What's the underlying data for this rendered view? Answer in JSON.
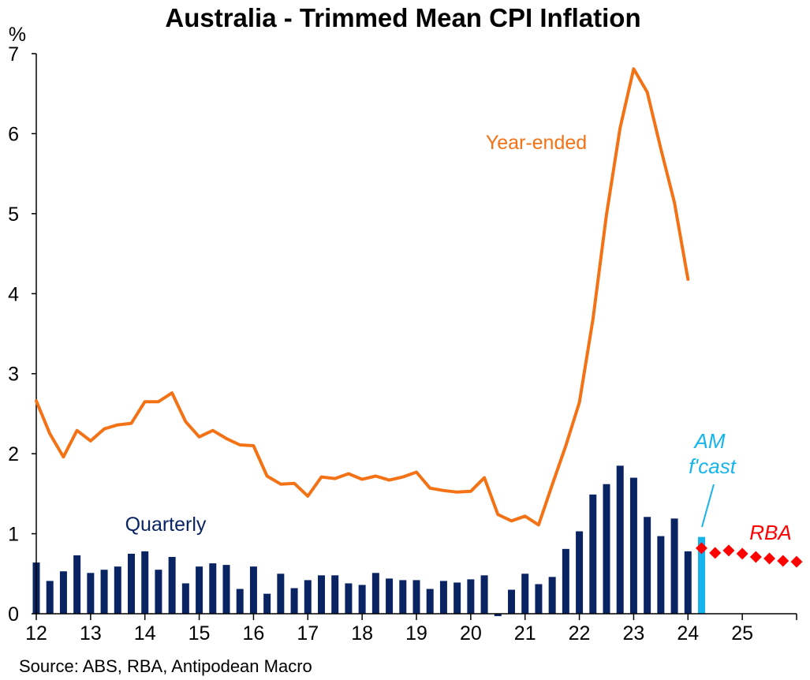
{
  "chart_data": {
    "type": "bar+line",
    "title": "Australia - Trimmed Mean CPI Inflation",
    "ylabel": "%",
    "ylim": [
      0,
      7
    ],
    "yticks": [
      "0",
      "1",
      "2",
      "3",
      "4",
      "5",
      "6",
      "7"
    ],
    "xlim": [
      2012.0,
      2026.0
    ],
    "xticks": [
      "12",
      "13",
      "14",
      "15",
      "16",
      "17",
      "18",
      "19",
      "20",
      "21",
      "22",
      "23",
      "24",
      "25"
    ],
    "source": "Source: ABS, RBA, Antipodean Macro",
    "annotations": {
      "year_ended": "Year-ended",
      "quarterly": "Quarterly",
      "forecast_line1": "AM",
      "forecast_line2": "f'cast",
      "rba": "RBA"
    },
    "colors": {
      "quarterly": "#0a2463",
      "year_ended": "#f47216",
      "forecast": "#16b4ec",
      "rba": "#ff0000",
      "axis": "#000000"
    },
    "quarterly": {
      "name": "Quarterly",
      "x": [
        2012.0,
        2012.25,
        2012.5,
        2012.75,
        2013.0,
        2013.25,
        2013.5,
        2013.75,
        2014.0,
        2014.25,
        2014.5,
        2014.75,
        2015.0,
        2015.25,
        2015.5,
        2015.75,
        2016.0,
        2016.25,
        2016.5,
        2016.75,
        2017.0,
        2017.25,
        2017.5,
        2017.75,
        2018.0,
        2018.25,
        2018.5,
        2018.75,
        2019.0,
        2019.25,
        2019.5,
        2019.75,
        2020.0,
        2020.25,
        2020.5,
        2020.75,
        2021.0,
        2021.25,
        2021.5,
        2021.75,
        2022.0,
        2022.25,
        2022.5,
        2022.75,
        2023.0,
        2023.25,
        2023.5,
        2023.75,
        2024.0
      ],
      "values": [
        0.64,
        0.41,
        0.53,
        0.73,
        0.51,
        0.55,
        0.59,
        0.75,
        0.78,
        0.55,
        0.71,
        0.38,
        0.59,
        0.63,
        0.61,
        0.31,
        0.59,
        0.25,
        0.5,
        0.32,
        0.42,
        0.48,
        0.48,
        0.38,
        0.36,
        0.51,
        0.44,
        0.42,
        0.42,
        0.31,
        0.41,
        0.39,
        0.43,
        0.48,
        -0.03,
        0.3,
        0.5,
        0.37,
        0.46,
        0.81,
        1.03,
        1.49,
        1.62,
        1.85,
        1.7,
        1.21,
        0.97,
        1.19,
        0.78
      ]
    },
    "forecast": {
      "name": "AM f'cast",
      "x": [
        2024.25
      ],
      "values": [
        0.96
      ]
    },
    "year_ended": {
      "name": "Year-ended",
      "x": [
        2012.0,
        2012.25,
        2012.5,
        2012.75,
        2013.0,
        2013.25,
        2013.5,
        2013.75,
        2014.0,
        2014.25,
        2014.5,
        2014.75,
        2015.0,
        2015.25,
        2015.5,
        2015.75,
        2016.0,
        2016.25,
        2016.5,
        2016.75,
        2017.0,
        2017.25,
        2017.5,
        2017.75,
        2018.0,
        2018.25,
        2018.5,
        2018.75,
        2019.0,
        2019.25,
        2019.5,
        2019.75,
        2020.0,
        2020.25,
        2020.5,
        2020.75,
        2021.0,
        2021.25,
        2021.5,
        2021.75,
        2022.0,
        2022.25,
        2022.5,
        2022.75,
        2023.0,
        2023.25,
        2023.5,
        2023.75,
        2024.0
      ],
      "values": [
        2.66,
        2.25,
        1.96,
        2.29,
        2.16,
        2.31,
        2.36,
        2.38,
        2.65,
        2.65,
        2.76,
        2.4,
        2.21,
        2.29,
        2.19,
        2.11,
        2.1,
        1.72,
        1.62,
        1.63,
        1.47,
        1.71,
        1.69,
        1.75,
        1.68,
        1.72,
        1.67,
        1.71,
        1.77,
        1.57,
        1.54,
        1.52,
        1.53,
        1.7,
        1.24,
        1.16,
        1.22,
        1.11,
        1.61,
        2.1,
        2.64,
        3.68,
        4.99,
        6.07,
        6.81,
        6.52,
        5.81,
        5.14,
        4.18
      ]
    },
    "rba": {
      "name": "RBA",
      "x": [
        2024.25,
        2024.5,
        2024.75,
        2025.0,
        2025.25,
        2025.5,
        2025.75,
        2026.0
      ],
      "values": [
        0.82,
        0.76,
        0.79,
        0.75,
        0.71,
        0.69,
        0.66,
        0.65
      ]
    }
  }
}
